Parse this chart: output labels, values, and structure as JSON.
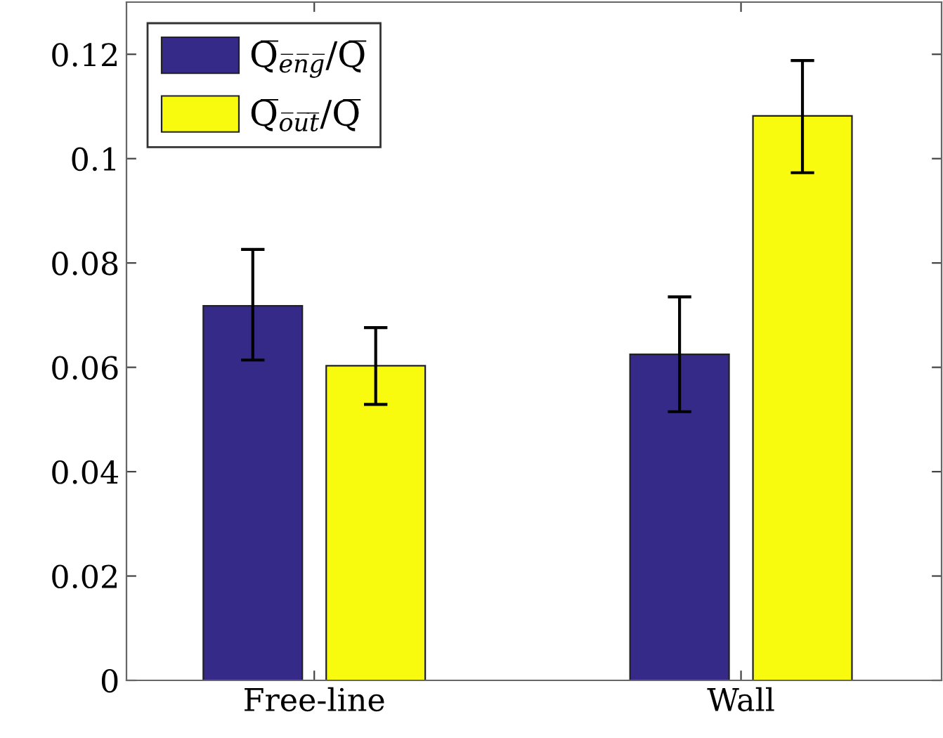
{
  "chart_data": {
    "type": "bar",
    "categories": [
      "Free-line",
      "Wall"
    ],
    "series": [
      {
        "name": "Q̅$_{e̅n̅g̅}$/Q̅",
        "color": "#352a87",
        "values": [
          0.0718,
          0.0625
        ],
        "errors": [
          [
            0.0614,
            0.0826
          ],
          [
            0.0515,
            0.0735
          ]
        ]
      },
      {
        "name": "Q̅$_{o̅u̅t̅}$/Q̅",
        "color": "#f9fb0e",
        "values": [
          0.0603,
          0.1082
        ],
        "errors": [
          [
            0.0529,
            0.0676
          ],
          [
            0.0973,
            0.1188
          ]
        ]
      }
    ],
    "ylim": [
      0,
      0.13
    ],
    "yticks": [
      0,
      0.02,
      0.04,
      0.06,
      0.08,
      0.1,
      0.12
    ],
    "grid": false,
    "legend": "top left"
  }
}
